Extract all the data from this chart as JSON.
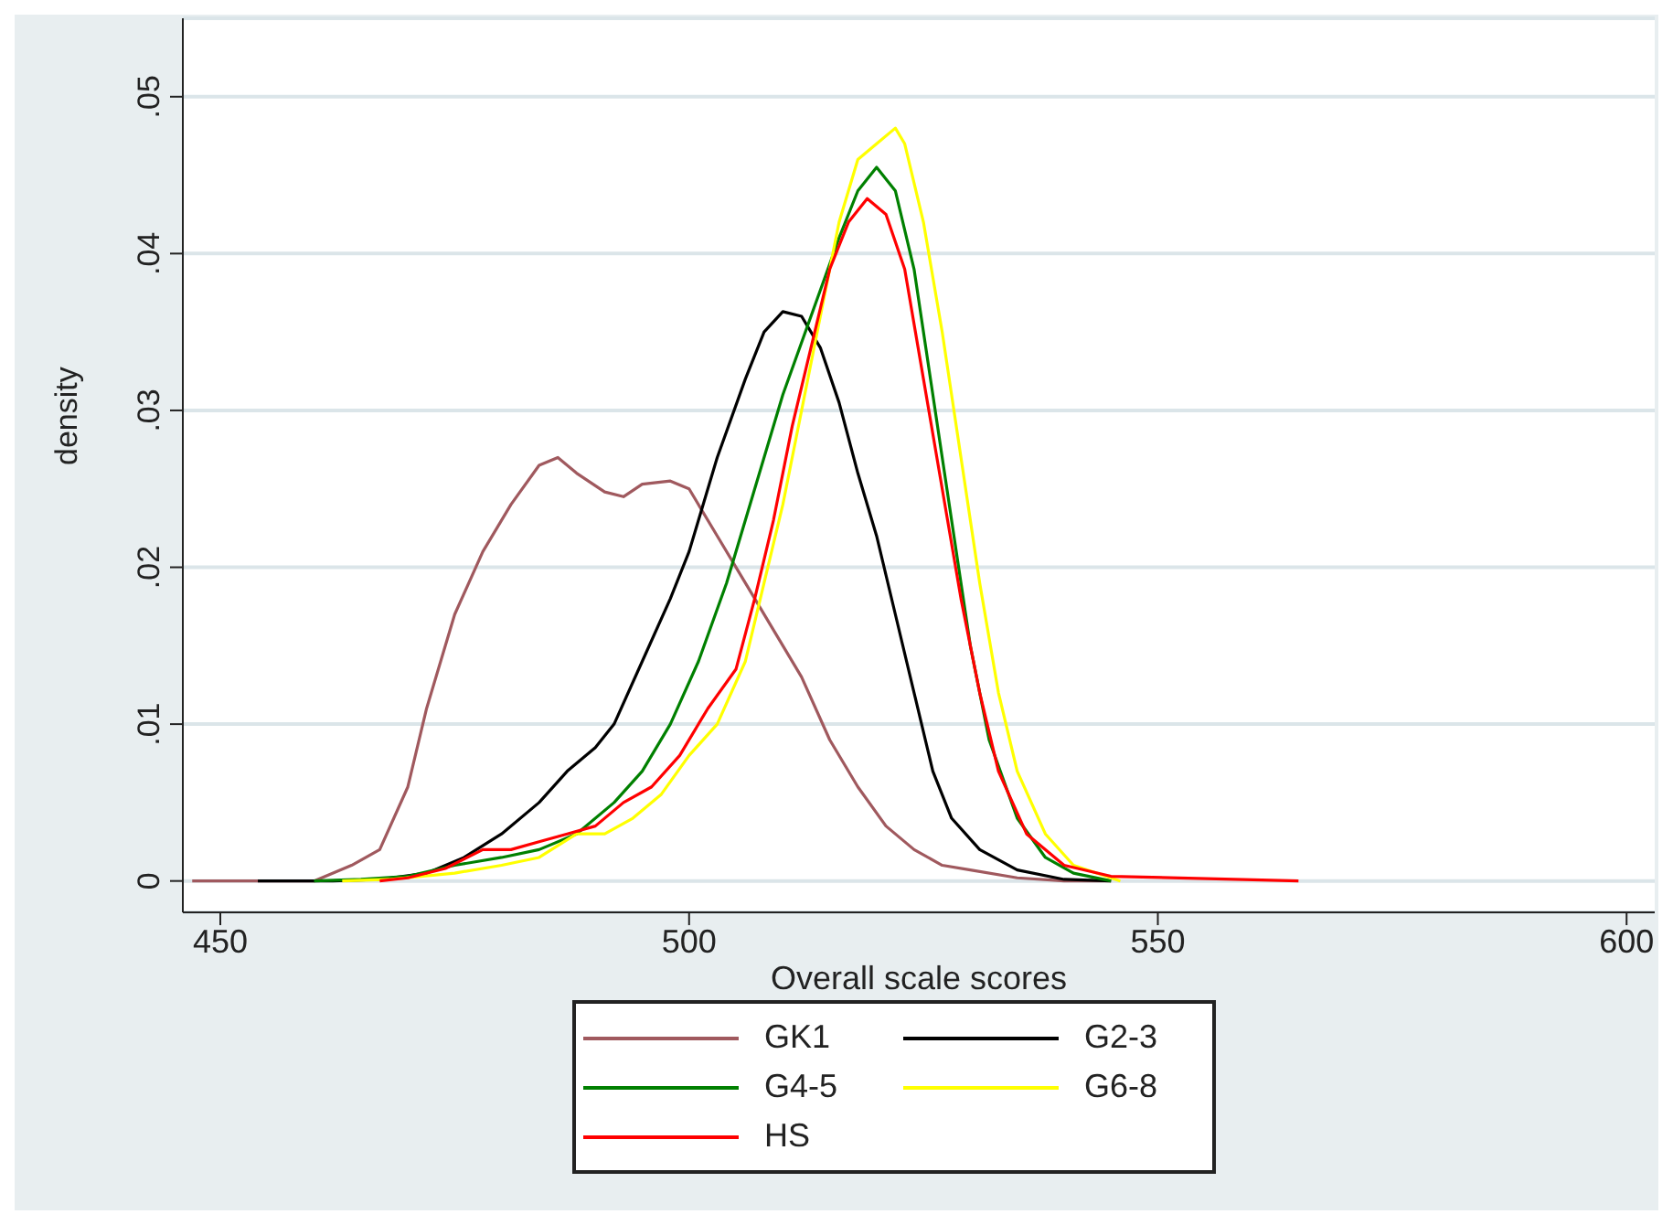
{
  "chart_data": {
    "type": "line",
    "xlabel": "Overall scale scores",
    "ylabel": "density",
    "xlim": [
      446,
      603
    ],
    "xticks": [
      450,
      500,
      550,
      600
    ],
    "ylim": [
      -0.002,
      0.055
    ],
    "yticks": [
      {
        "value": 0,
        "label": "0"
      },
      {
        "value": 0.01,
        "label": ".01"
      },
      {
        "value": 0.02,
        "label": ".02"
      },
      {
        "value": 0.03,
        "label": ".03"
      },
      {
        "value": 0.04,
        "label": ".04"
      },
      {
        "value": 0.05,
        "label": ".05"
      }
    ],
    "grid": "y",
    "legend": "bottom",
    "marker": "none",
    "line_style": "solid",
    "series": [
      {
        "name": "GK1",
        "color": "#a0595e",
        "x": [
          447,
          460,
          464,
          467,
          470,
          472,
          475,
          478,
          481,
          484,
          486,
          488,
          491,
          493,
          495,
          498,
          500,
          503,
          506,
          509,
          512,
          515,
          518,
          521,
          524,
          527,
          530,
          535,
          540,
          545
        ],
        "values": [
          0,
          0,
          0.001,
          0.002,
          0.006,
          0.011,
          0.017,
          0.021,
          0.024,
          0.0265,
          0.027,
          0.026,
          0.0248,
          0.0245,
          0.0253,
          0.0255,
          0.025,
          0.022,
          0.019,
          0.016,
          0.013,
          0.009,
          0.006,
          0.0035,
          0.002,
          0.001,
          0.0007,
          0.0002,
          0,
          0
        ]
      },
      {
        "name": "G2-3",
        "color": "#000000",
        "x": [
          454,
          462,
          467,
          472,
          476,
          480,
          484,
          487,
          490,
          492,
          495,
          498,
          500,
          503,
          506,
          508,
          510,
          512,
          514,
          516,
          518,
          520,
          522,
          524,
          526,
          528,
          531,
          535,
          540,
          545
        ],
        "values": [
          0,
          0,
          0.0001,
          0.0005,
          0.0015,
          0.003,
          0.005,
          0.007,
          0.0085,
          0.01,
          0.014,
          0.018,
          0.021,
          0.027,
          0.032,
          0.035,
          0.0363,
          0.036,
          0.034,
          0.0305,
          0.026,
          0.022,
          0.017,
          0.012,
          0.007,
          0.004,
          0.002,
          0.0007,
          0.0001,
          0
        ]
      },
      {
        "name": "G4-5",
        "color": "#008000",
        "x": [
          460,
          465,
          470,
          475,
          480,
          484,
          488,
          492,
          495,
          498,
          501,
          504,
          507,
          510,
          513,
          516,
          518,
          520,
          522,
          524,
          526,
          528,
          530,
          532,
          535,
          538,
          541,
          545
        ],
        "values": [
          0,
          0.0001,
          0.0003,
          0.001,
          0.0015,
          0.002,
          0.003,
          0.005,
          0.007,
          0.01,
          0.014,
          0.019,
          0.025,
          0.031,
          0.036,
          0.041,
          0.044,
          0.0455,
          0.044,
          0.039,
          0.031,
          0.023,
          0.015,
          0.009,
          0.004,
          0.0015,
          0.0005,
          0
        ]
      },
      {
        "name": "G6-8",
        "color": "#ffff00",
        "x": [
          463,
          468,
          475,
          480,
          484,
          488,
          491,
          494,
          497,
          500,
          503,
          506,
          508,
          510,
          512,
          514,
          516,
          518,
          520,
          522,
          523,
          525,
          527,
          529,
          531,
          533,
          535,
          538,
          541,
          546
        ],
        "values": [
          0,
          0.0001,
          0.0005,
          0.001,
          0.0015,
          0.003,
          0.003,
          0.004,
          0.0055,
          0.008,
          0.01,
          0.014,
          0.019,
          0.024,
          0.03,
          0.036,
          0.042,
          0.046,
          0.047,
          0.048,
          0.047,
          0.042,
          0.035,
          0.027,
          0.019,
          0.012,
          0.007,
          0.003,
          0.001,
          0
        ]
      },
      {
        "name": "HS",
        "color": "#ff0000",
        "x": [
          467,
          470,
          474,
          478,
          481,
          484,
          487,
          490,
          493,
          496,
          499,
          502,
          505,
          507,
          509,
          511,
          513,
          515,
          517,
          519,
          521,
          523,
          525,
          527,
          529,
          531,
          533,
          536,
          540,
          545,
          565
        ],
        "values": [
          0,
          0.0002,
          0.0008,
          0.002,
          0.002,
          0.0025,
          0.003,
          0.0035,
          0.005,
          0.006,
          0.008,
          0.011,
          0.0135,
          0.018,
          0.023,
          0.029,
          0.034,
          0.039,
          0.042,
          0.0435,
          0.0425,
          0.039,
          0.032,
          0.025,
          0.018,
          0.012,
          0.007,
          0.003,
          0.001,
          0.0003,
          0
        ]
      }
    ]
  }
}
